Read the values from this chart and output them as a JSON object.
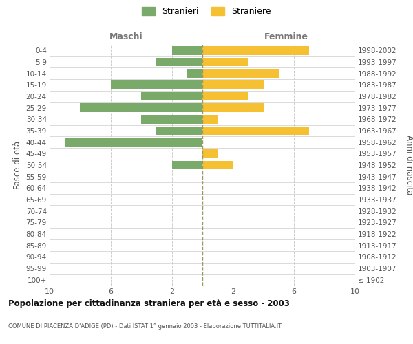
{
  "age_groups": [
    "100+",
    "95-99",
    "90-94",
    "85-89",
    "80-84",
    "75-79",
    "70-74",
    "65-69",
    "60-64",
    "55-59",
    "50-54",
    "45-49",
    "40-44",
    "35-39",
    "30-34",
    "25-29",
    "20-24",
    "15-19",
    "10-14",
    "5-9",
    "0-4"
  ],
  "birth_years": [
    "≤ 1902",
    "1903-1907",
    "1908-1912",
    "1913-1917",
    "1918-1922",
    "1923-1927",
    "1928-1932",
    "1933-1937",
    "1938-1942",
    "1943-1947",
    "1948-1952",
    "1953-1957",
    "1958-1962",
    "1963-1967",
    "1968-1972",
    "1973-1977",
    "1978-1982",
    "1983-1987",
    "1988-1992",
    "1993-1997",
    "1998-2002"
  ],
  "maschi": [
    0,
    0,
    0,
    0,
    0,
    0,
    0,
    0,
    0,
    0,
    2,
    0,
    9,
    3,
    4,
    8,
    4,
    6,
    1,
    3,
    2
  ],
  "femmine": [
    0,
    0,
    0,
    0,
    0,
    0,
    0,
    0,
    0,
    0,
    2,
    1,
    0,
    7,
    1,
    4,
    3,
    4,
    5,
    3,
    7
  ],
  "maschi_color": "#7aaa6a",
  "femmine_color": "#f5c032",
  "background_color": "#ffffff",
  "grid_color": "#cccccc",
  "title": "Popolazione per cittadinanza straniera per età e sesso - 2003",
  "subtitle": "COMUNE DI PIACENZA D'ADIGE (PD) - Dati ISTAT 1° gennaio 2003 - Elaborazione TUTTITALIA.IT",
  "ylabel_left": "Fasce di età",
  "ylabel_right": "Anni di nascita",
  "xlabel_max": 10,
  "legend_stranieri": "Stranieri",
  "legend_straniere": "Straniere",
  "maschi_label": "Maschi",
  "femmine_label": "Femmine",
  "xtick_positions": [
    -10,
    -6,
    -2,
    2,
    6,
    10
  ],
  "center_line_color": "#999966",
  "center_line_style": "--"
}
